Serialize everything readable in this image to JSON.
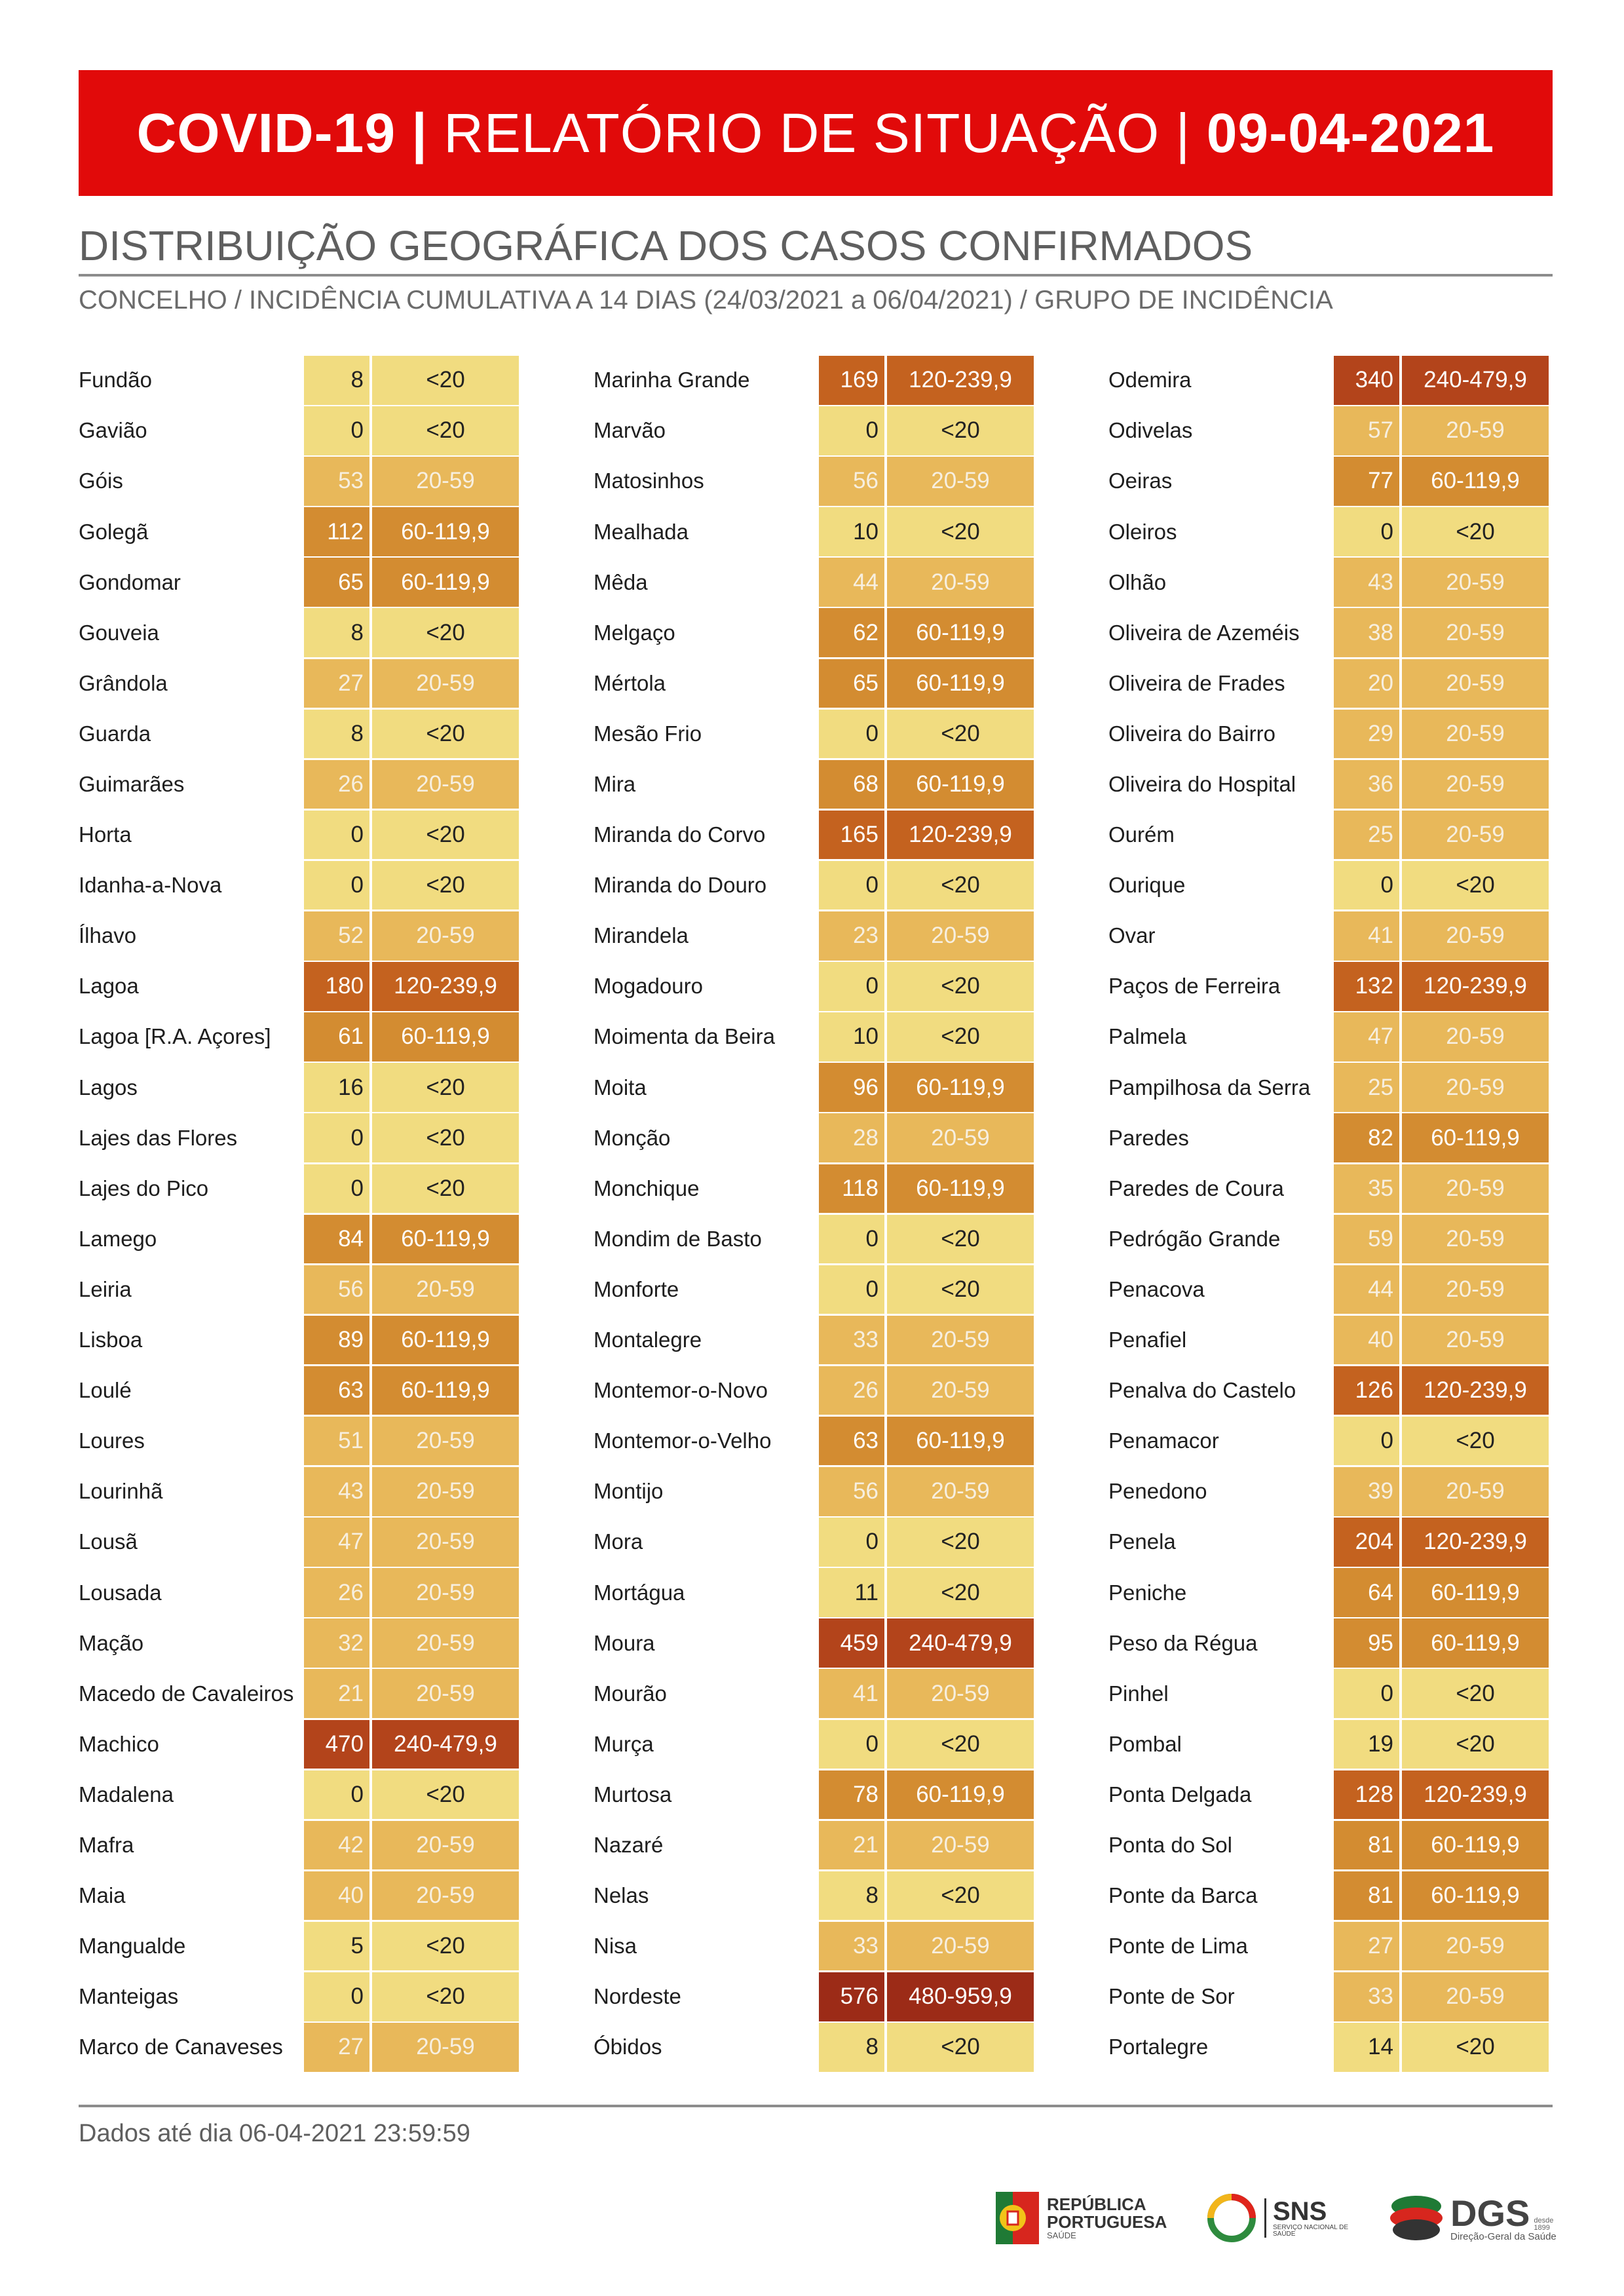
{
  "header": {
    "title_left": "COVID-19 |",
    "title_mid": " RELATÓRIO DE SITUAÇÃO | ",
    "title_date": "09-04-2021"
  },
  "section_title": "DISTRIBUIÇÃO GEOGRÁFICA DOS CASOS CONFIRMADOS",
  "subtitle": "CONCELHO / INCIDÊNCIA CUMULATIVA A 14 DIAS (24/03/2021 a 06/04/2021) / GRUPO DE INCIDÊNCIA",
  "colors": {
    "title_bar": "#e10a0a",
    "<20": "#f1dc80",
    "20-59": "#e8b85a",
    "60-119,9": "#d38c31",
    "120-239,9": "#c4621f",
    "240-479,9": "#b3441b",
    "480-959,9": "#9c2b17"
  },
  "columns": [
    [
      [
        "Fundão",
        "8",
        "<20"
      ],
      [
        "Gavião",
        "0",
        "<20"
      ],
      [
        "Góis",
        "53",
        "20-59"
      ],
      [
        "Golegã",
        "112",
        "60-119,9"
      ],
      [
        "Gondomar",
        "65",
        "60-119,9"
      ],
      [
        "Gouveia",
        "8",
        "<20"
      ],
      [
        "Grândola",
        "27",
        "20-59"
      ],
      [
        "Guarda",
        "8",
        "<20"
      ],
      [
        "Guimarães",
        "26",
        "20-59"
      ],
      [
        "Horta",
        "0",
        "<20"
      ],
      [
        "Idanha-a-Nova",
        "0",
        "<20"
      ],
      [
        "Ílhavo",
        "52",
        "20-59"
      ],
      [
        "Lagoa",
        "180",
        "120-239,9"
      ],
      [
        "Lagoa [R.A. Açores]",
        "61",
        "60-119,9"
      ],
      [
        "Lagos",
        "16",
        "<20"
      ],
      [
        "Lajes das Flores",
        "0",
        "<20"
      ],
      [
        "Lajes do Pico",
        "0",
        "<20"
      ],
      [
        "Lamego",
        "84",
        "60-119,9"
      ],
      [
        "Leiria",
        "56",
        "20-59"
      ],
      [
        "Lisboa",
        "89",
        "60-119,9"
      ],
      [
        "Loulé",
        "63",
        "60-119,9"
      ],
      [
        "Loures",
        "51",
        "20-59"
      ],
      [
        "Lourinhã",
        "43",
        "20-59"
      ],
      [
        "Lousã",
        "47",
        "20-59"
      ],
      [
        "Lousada",
        "26",
        "20-59"
      ],
      [
        "Mação",
        "32",
        "20-59"
      ],
      [
        "Macedo de Cavaleiros",
        "21",
        "20-59"
      ],
      [
        "Machico",
        "470",
        "240-479,9"
      ],
      [
        "Madalena",
        "0",
        "<20"
      ],
      [
        "Mafra",
        "42",
        "20-59"
      ],
      [
        "Maia",
        "40",
        "20-59"
      ],
      [
        "Mangualde",
        "5",
        "<20"
      ],
      [
        "Manteigas",
        "0",
        "<20"
      ],
      [
        "Marco de Canaveses",
        "27",
        "20-59"
      ]
    ],
    [
      [
        "Marinha Grande",
        "169",
        "120-239,9"
      ],
      [
        "Marvão",
        "0",
        "<20"
      ],
      [
        "Matosinhos",
        "56",
        "20-59"
      ],
      [
        "Mealhada",
        "10",
        "<20"
      ],
      [
        "Mêda",
        "44",
        "20-59"
      ],
      [
        "Melgaço",
        "62",
        "60-119,9"
      ],
      [
        "Mértola",
        "65",
        "60-119,9"
      ],
      [
        "Mesão Frio",
        "0",
        "<20"
      ],
      [
        "Mira",
        "68",
        "60-119,9"
      ],
      [
        "Miranda do Corvo",
        "165",
        "120-239,9"
      ],
      [
        "Miranda do Douro",
        "0",
        "<20"
      ],
      [
        "Mirandela",
        "23",
        "20-59"
      ],
      [
        "Mogadouro",
        "0",
        "<20"
      ],
      [
        "Moimenta da Beira",
        "10",
        "<20"
      ],
      [
        "Moita",
        "96",
        "60-119,9"
      ],
      [
        "Monção",
        "28",
        "20-59"
      ],
      [
        "Monchique",
        "118",
        "60-119,9"
      ],
      [
        "Mondim de Basto",
        "0",
        "<20"
      ],
      [
        "Monforte",
        "0",
        "<20"
      ],
      [
        "Montalegre",
        "33",
        "20-59"
      ],
      [
        "Montemor-o-Novo",
        "26",
        "20-59"
      ],
      [
        "Montemor-o-Velho",
        "63",
        "60-119,9"
      ],
      [
        "Montijo",
        "56",
        "20-59"
      ],
      [
        "Mora",
        "0",
        "<20"
      ],
      [
        "Mortágua",
        "11",
        "<20"
      ],
      [
        "Moura",
        "459",
        "240-479,9"
      ],
      [
        "Mourão",
        "41",
        "20-59"
      ],
      [
        "Murça",
        "0",
        "<20"
      ],
      [
        "Murtosa",
        "78",
        "60-119,9"
      ],
      [
        "Nazaré",
        "21",
        "20-59"
      ],
      [
        "Nelas",
        "8",
        "<20"
      ],
      [
        "Nisa",
        "33",
        "20-59"
      ],
      [
        "Nordeste",
        "576",
        "480-959,9"
      ],
      [
        "Óbidos",
        "8",
        "<20"
      ]
    ],
    [
      [
        "Odemira",
        "340",
        "240-479,9"
      ],
      [
        "Odivelas",
        "57",
        "20-59"
      ],
      [
        "Oeiras",
        "77",
        "60-119,9"
      ],
      [
        "Oleiros",
        "0",
        "<20"
      ],
      [
        "Olhão",
        "43",
        "20-59"
      ],
      [
        "Oliveira de Azeméis",
        "38",
        "20-59"
      ],
      [
        "Oliveira de Frades",
        "20",
        "20-59"
      ],
      [
        "Oliveira do Bairro",
        "29",
        "20-59"
      ],
      [
        "Oliveira do Hospital",
        "36",
        "20-59"
      ],
      [
        "Ourém",
        "25",
        "20-59"
      ],
      [
        "Ourique",
        "0",
        "<20"
      ],
      [
        "Ovar",
        "41",
        "20-59"
      ],
      [
        "Paços de Ferreira",
        "132",
        "120-239,9"
      ],
      [
        "Palmela",
        "47",
        "20-59"
      ],
      [
        "Pampilhosa da Serra",
        "25",
        "20-59"
      ],
      [
        "Paredes",
        "82",
        "60-119,9"
      ],
      [
        "Paredes de Coura",
        "35",
        "20-59"
      ],
      [
        "Pedrógão Grande",
        "59",
        "20-59"
      ],
      [
        "Penacova",
        "44",
        "20-59"
      ],
      [
        "Penafiel",
        "40",
        "20-59"
      ],
      [
        "Penalva do Castelo",
        "126",
        "120-239,9"
      ],
      [
        "Penamacor",
        "0",
        "<20"
      ],
      [
        "Penedono",
        "39",
        "20-59"
      ],
      [
        "Penela",
        "204",
        "120-239,9"
      ],
      [
        "Peniche",
        "64",
        "60-119,9"
      ],
      [
        "Peso da Régua",
        "95",
        "60-119,9"
      ],
      [
        "Pinhel",
        "0",
        "<20"
      ],
      [
        "Pombal",
        "19",
        "<20"
      ],
      [
        "Ponta Delgada",
        "128",
        "120-239,9"
      ],
      [
        "Ponta do Sol",
        "81",
        "60-119,9"
      ],
      [
        "Ponte da Barca",
        "81",
        "60-119,9"
      ],
      [
        "Ponte de Lima",
        "27",
        "20-59"
      ],
      [
        "Ponte de Sor",
        "33",
        "20-59"
      ],
      [
        "Portalegre",
        "14",
        "<20"
      ]
    ]
  ],
  "footer": {
    "text": "Dados até dia 06-04-2021 23:59:59"
  },
  "logos": {
    "republica_line1": "REPÚBLICA",
    "republica_line2": "PORTUGUESA",
    "republica_line3": "SAÚDE",
    "sns": "SNS",
    "sns_sub": "SERVIÇO NACIONAL DE SAÚDE",
    "dgs": "DGS",
    "dgs_since": "desde 1899",
    "dgs_sub": "Direção-Geral da Saúde"
  }
}
